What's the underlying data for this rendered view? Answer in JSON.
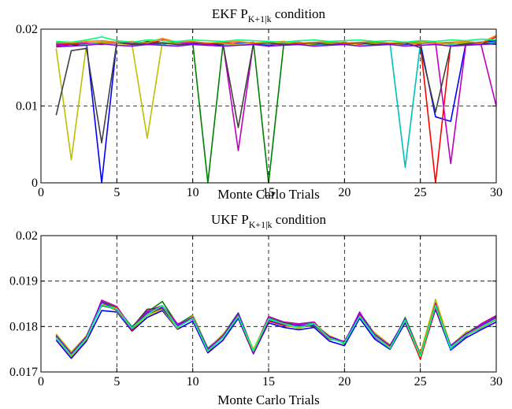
{
  "chart_data": [
    {
      "type": "line",
      "title_main": "EKF P",
      "title_sub": "K+1|k",
      "title_rest": " condition",
      "xlabel": "Monte Carlo Trials",
      "ylabel": "",
      "xlim": [
        0,
        30
      ],
      "ylim": [
        0,
        0.02
      ],
      "xticks": [
        "0",
        "5",
        "10",
        "15",
        "20",
        "25",
        "30"
      ],
      "yticks": [
        "0",
        "0.01",
        "0.02"
      ],
      "grid": "dashed at major ticks",
      "x": [
        1,
        2,
        3,
        4,
        5,
        6,
        7,
        8,
        9,
        10,
        11,
        12,
        13,
        14,
        15,
        16,
        17,
        18,
        19,
        20,
        21,
        22,
        23,
        24,
        25,
        26,
        27,
        28,
        29,
        30
      ],
      "series_colors": [
        "#0000ff",
        "#008000",
        "#ff0000",
        "#00bfbf",
        "#bf00bf",
        "#bfbf00",
        "#404040",
        "#ff7f00",
        "#7f00ff",
        "#00ff7f"
      ],
      "series": [
        {
          "values": [
            0.018,
            0.0178,
            0.0182,
            0.0,
            0.0184,
            0.0181,
            0.0183,
            0.0182,
            0.018,
            0.0181,
            0.0179,
            0.018,
            0.0182,
            0.0181,
            0.0179,
            0.0182,
            0.0183,
            0.018,
            0.0181,
            0.018,
            0.0182,
            0.0183,
            0.0181,
            0.018,
            0.0182,
            0.0086,
            0.008,
            0.0182,
            0.0183,
            0.0185
          ]
        },
        {
          "values": [
            0.0182,
            0.018,
            0.0181,
            0.0183,
            0.0182,
            0.018,
            0.0184,
            0.0182,
            0.0181,
            0.0182,
            0.0,
            0.0181,
            0.018,
            0.0183,
            0.0,
            0.0181,
            0.0182,
            0.018,
            0.0183,
            0.0181,
            0.0182,
            0.018,
            0.0181,
            0.0183,
            0.0182,
            0.0181,
            0.0182,
            0.018,
            0.0181,
            0.0183
          ]
        },
        {
          "values": [
            0.0178,
            0.0181,
            0.018,
            0.0182,
            0.0181,
            0.0183,
            0.018,
            0.0186,
            0.0182,
            0.018,
            0.0181,
            0.0182,
            0.0181,
            0.018,
            0.0182,
            0.0181,
            0.018,
            0.0182,
            0.0181,
            0.0183,
            0.018,
            0.0182,
            0.0181,
            0.0182,
            0.018,
            0.0,
            0.0181,
            0.0182,
            0.018,
            0.019
          ]
        },
        {
          "values": [
            0.0181,
            0.0182,
            0.018,
            0.0183,
            0.0182,
            0.0181,
            0.0182,
            0.018,
            0.0183,
            0.0181,
            0.0182,
            0.018,
            0.0181,
            0.0182,
            0.018,
            0.0181,
            0.0183,
            0.0181,
            0.018,
            0.0182,
            0.0181,
            0.018,
            0.0182,
            0.002,
            0.0181,
            0.0182,
            0.018,
            0.0183,
            0.0181,
            0.0182
          ]
        },
        {
          "values": [
            0.018,
            0.0181,
            0.0182,
            0.018,
            0.0183,
            0.0181,
            0.018,
            0.0182,
            0.0181,
            0.0183,
            0.018,
            0.0181,
            0.0042,
            0.0182,
            0.0181,
            0.018,
            0.0182,
            0.0181,
            0.0183,
            0.018,
            0.0182,
            0.0181,
            0.018,
            0.0182,
            0.0181,
            0.0183,
            0.0025,
            0.0181,
            0.018,
            0.01
          ]
        },
        {
          "values": [
            0.0175,
            0.003,
            0.018,
            0.0182,
            0.0181,
            0.018,
            0.0058,
            0.0183,
            0.0181,
            0.018,
            0.0182,
            0.0181,
            0.018,
            0.0182,
            0.0181,
            0.0183,
            0.018,
            0.0181,
            0.0182,
            0.018,
            0.0181,
            0.0182,
            0.018,
            0.0181,
            0.0182,
            0.018,
            0.0181,
            0.0182,
            0.018,
            0.0181
          ]
        },
        {
          "values": [
            0.0088,
            0.0172,
            0.0175,
            0.0052,
            0.0183,
            0.018,
            0.0181,
            0.0182,
            0.018,
            0.0181,
            0.0182,
            0.018,
            0.0072,
            0.0181,
            0.0182,
            0.018,
            0.0181,
            0.0182,
            0.018,
            0.0181,
            0.0182,
            0.018,
            0.0181,
            0.0182,
            0.0176,
            0.0092,
            0.0178,
            0.0181,
            0.0182,
            0.018
          ]
        },
        {
          "values": [
            0.0183,
            0.0182,
            0.0184,
            0.0185,
            0.0183,
            0.0184,
            0.0182,
            0.0188,
            0.0183,
            0.0184,
            0.0182,
            0.0183,
            0.0184,
            0.0182,
            0.0183,
            0.0184,
            0.0182,
            0.0183,
            0.0184,
            0.0182,
            0.0183,
            0.0184,
            0.0182,
            0.0183,
            0.0184,
            0.0182,
            0.0183,
            0.0184,
            0.0182,
            0.0192
          ]
        },
        {
          "values": [
            0.0177,
            0.0178,
            0.0179,
            0.0181,
            0.0179,
            0.0178,
            0.018,
            0.0179,
            0.0178,
            0.018,
            0.0179,
            0.0178,
            0.0179,
            0.018,
            0.0178,
            0.0179,
            0.018,
            0.0178,
            0.0179,
            0.018,
            0.0178,
            0.0179,
            0.018,
            0.0178,
            0.0179,
            0.018,
            0.0178,
            0.0179,
            0.018,
            0.0181
          ]
        },
        {
          "values": [
            0.0184,
            0.0183,
            0.0186,
            0.019,
            0.0185,
            0.0183,
            0.0186,
            0.0185,
            0.0184,
            0.0186,
            0.0185,
            0.0184,
            0.0186,
            0.0185,
            0.0184,
            0.0183,
            0.0185,
            0.0186,
            0.0184,
            0.0185,
            0.0186,
            0.0184,
            0.0185,
            0.0183,
            0.0185,
            0.0184,
            0.0186,
            0.0185,
            0.0187,
            0.0186
          ]
        }
      ]
    },
    {
      "type": "line",
      "title_main": "UKF P",
      "title_sub": "K+1|k",
      "title_rest": " condition",
      "xlabel": "Monte Carlo Trials",
      "ylabel": "",
      "xlim": [
        0,
        30
      ],
      "ylim": [
        0.017,
        0.02
      ],
      "xticks": [
        "0",
        "5",
        "10",
        "15",
        "20",
        "25",
        "30"
      ],
      "yticks": [
        "0.017",
        "0.018",
        "0.019",
        "0.02"
      ],
      "grid": "dashed at major ticks",
      "x": [
        1,
        2,
        3,
        4,
        5,
        6,
        7,
        8,
        9,
        10,
        11,
        12,
        13,
        14,
        15,
        16,
        17,
        18,
        19,
        20,
        21,
        22,
        23,
        24,
        25,
        26,
        27,
        28,
        29,
        30
      ],
      "base_values": [
        0.01778,
        0.01738,
        0.01775,
        0.0185,
        0.01838,
        0.01795,
        0.01828,
        0.01842,
        0.018,
        0.0182,
        0.01748,
        0.01778,
        0.01825,
        0.01745,
        0.01815,
        0.01805,
        0.018,
        0.01805,
        0.01775,
        0.01765,
        0.01825,
        0.0178,
        0.01755,
        0.01815,
        0.01735,
        0.01845,
        0.01755,
        0.01782,
        0.018,
        0.01818
      ],
      "series_colors": [
        "#0000ff",
        "#008000",
        "#ff0000",
        "#00bfbf",
        "#bf00bf",
        "#bfbf00",
        "#404040",
        "#ff7f00",
        "#7f00ff",
        "#00ff7f"
      ],
      "series": [
        {
          "values": [
            0.0177,
            0.0173,
            0.01768,
            0.01835,
            0.01832,
            0.0179,
            0.0182,
            0.01835,
            0.01794,
            0.01812,
            0.01742,
            0.0177,
            0.01818,
            0.0174,
            0.01808,
            0.01798,
            0.01793,
            0.01798,
            0.01768,
            0.01758,
            0.01818,
            0.01772,
            0.0175,
            0.01808,
            0.0173,
            0.01838,
            0.01748,
            0.01775,
            0.01793,
            0.0181
          ]
        },
        {
          "values": [
            0.01782,
            0.01742,
            0.01778,
            0.01855,
            0.01842,
            0.01798,
            0.01832,
            0.01855,
            0.01804,
            0.01825,
            0.01752,
            0.01782,
            0.0183,
            0.01748,
            0.0182,
            0.01808,
            0.01804,
            0.01808,
            0.01778,
            0.01762,
            0.0183,
            0.01784,
            0.01752,
            0.0182,
            0.0174,
            0.0185,
            0.01758,
            0.01786,
            0.01804,
            0.01822
          ]
        },
        {
          "values": [
            0.01775,
            0.01735,
            0.01772,
            0.01852,
            0.01836,
            0.01792,
            0.01826,
            0.0184,
            0.01798,
            0.01818,
            0.01745,
            0.01776,
            0.01822,
            0.01742,
            0.01812,
            0.01802,
            0.01798,
            0.01803,
            0.01772,
            0.01768,
            0.01822,
            0.01778,
            0.01758,
            0.01812,
            0.01728,
            0.01842,
            0.01752,
            0.0178,
            0.01797,
            0.01815
          ]
        },
        {
          "values": [
            0.0178,
            0.0174,
            0.01776,
            0.01848,
            0.0184,
            0.018,
            0.0183,
            0.01844,
            0.01802,
            0.01822,
            0.0175,
            0.0178,
            0.01828,
            0.01747,
            0.01818,
            0.01806,
            0.01802,
            0.01807,
            0.01776,
            0.01766,
            0.01828,
            0.01782,
            0.01756,
            0.01818,
            0.01736,
            0.01848,
            0.0175,
            0.01784,
            0.01802,
            0.0182
          ]
        },
        {
          "values": [
            0.01776,
            0.01736,
            0.01774,
            0.01858,
            0.01844,
            0.01796,
            0.01834,
            0.01846,
            0.01806,
            0.01816,
            0.01746,
            0.01776,
            0.01826,
            0.01746,
            0.01822,
            0.0181,
            0.01806,
            0.0181,
            0.01774,
            0.01764,
            0.01832,
            0.01776,
            0.01754,
            0.01816,
            0.01738,
            0.01852,
            0.01756,
            0.01778,
            0.01806,
            0.01824
          ]
        },
        {
          "values": [
            0.01784,
            0.01744,
            0.0178,
            0.01852,
            0.01834,
            0.01794,
            0.01824,
            0.01838,
            0.01796,
            0.01824,
            0.0175,
            0.01784,
            0.01824,
            0.0175,
            0.01816,
            0.01804,
            0.01796,
            0.01806,
            0.0178,
            0.01766,
            0.01824,
            0.01786,
            0.0176,
            0.01814,
            0.01742,
            0.0186,
            0.01758,
            0.01788,
            0.01798,
            0.01816
          ]
        },
        {
          "values": [
            0.01778,
            0.01738,
            0.01776,
            0.01846,
            0.01838,
            0.01798,
            0.01838,
            0.0184,
            0.018,
            0.0182,
            0.01748,
            0.01778,
            0.01826,
            0.01744,
            0.01814,
            0.01808,
            0.018,
            0.01802,
            0.01776,
            0.01764,
            0.01826,
            0.0178,
            0.01756,
            0.01816,
            0.01736,
            0.01846,
            0.01756,
            0.01782,
            0.018,
            0.01818
          ]
        },
        {
          "values": [
            0.01774,
            0.01734,
            0.01772,
            0.0185,
            0.0184,
            0.01796,
            0.01828,
            0.01844,
            0.018,
            0.01822,
            0.01746,
            0.01778,
            0.01824,
            0.01746,
            0.01816,
            0.01806,
            0.018,
            0.01806,
            0.01774,
            0.01764,
            0.01824,
            0.0178,
            0.01754,
            0.01814,
            0.01734,
            0.01844,
            0.01754,
            0.01782,
            0.018,
            0.01818
          ]
        },
        {
          "values": [
            0.0178,
            0.0174,
            0.01778,
            0.01854,
            0.01836,
            0.01794,
            0.0183,
            0.01842,
            0.01802,
            0.0182,
            0.0175,
            0.0178,
            0.01828,
            0.01744,
            0.01814,
            0.01804,
            0.01802,
            0.01804,
            0.01778,
            0.01766,
            0.01828,
            0.01782,
            0.01758,
            0.01816,
            0.01736,
            0.01844,
            0.01758,
            0.01784,
            0.01802,
            0.0182
          ]
        },
        {
          "values": [
            0.01776,
            0.01736,
            0.01774,
            0.01848,
            0.01838,
            0.01796,
            0.01826,
            0.01846,
            0.01798,
            0.01818,
            0.01746,
            0.01776,
            0.01822,
            0.01746,
            0.01816,
            0.01806,
            0.01798,
            0.01806,
            0.01774,
            0.01764,
            0.01822,
            0.01778,
            0.01752,
            0.01814,
            0.01734,
            0.01846,
            0.01754,
            0.0178,
            0.01798,
            0.01816
          ]
        }
      ]
    }
  ]
}
